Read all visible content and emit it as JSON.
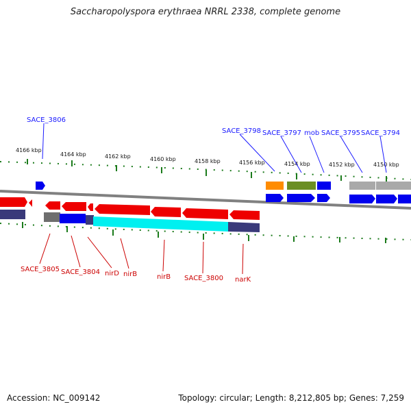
{
  "title": "Saccharopolyspora erythraea NRRL 2338, complete genome",
  "footer": {
    "accession": "Accession: NC_009142",
    "summary": "Topology: circular; Length: 8,212,805 bp; Genes: 7,259"
  },
  "ticks": [
    "4166 kbp",
    "4164 kbp",
    "4162 kbp",
    "4160 kbp",
    "4158 kbp",
    "4156 kbp",
    "4154 kbp",
    "4152 kbp",
    "4150 kbp"
  ],
  "labels_top": [
    "SACE_3806",
    "SACE_3798",
    "SACE_3797",
    "mob",
    "SACE_3795",
    "SACE_3794"
  ],
  "labels_bottom": [
    "SACE_3805",
    "SACE_3804",
    "nirD",
    "nirB",
    "nirB",
    "SACE_3800",
    "narK"
  ],
  "colors": {
    "forward_cds": "#0000ee",
    "reverse_cds": "#ee0000",
    "highlight_cyan": "#00f0f0",
    "rna_grey": "#a9a9a9",
    "orange": "#ff8c00",
    "olive": "#6b8e23",
    "navy": "#3a3a7a",
    "tick_green": "#1a7a1a",
    "backbone_grey": "#808080"
  }
}
